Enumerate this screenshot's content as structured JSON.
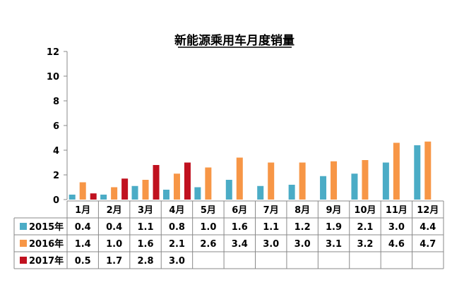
{
  "chart_data": {
    "type": "bar",
    "title": "新能源乘用车月度销量",
    "categories": [
      "1月",
      "2月",
      "3月",
      "4月",
      "5月",
      "6月",
      "7月",
      "8月",
      "9月",
      "10月",
      "11月",
      "12月"
    ],
    "ylim": [
      0,
      12
    ],
    "yticks": [
      "0",
      "2",
      "4",
      "6",
      "8",
      "10",
      "12"
    ],
    "grid": false,
    "legend": "data-table-left",
    "series": [
      {
        "name": "2015年",
        "color": "#4BACC6",
        "values": [
          0.4,
          0.4,
          1.1,
          0.8,
          1.0,
          1.6,
          1.1,
          1.2,
          1.9,
          2.1,
          3.0,
          4.4
        ],
        "labels": [
          "0.4",
          "0.4",
          "1.1",
          "0.8",
          "1.0",
          "1.6",
          "1.1",
          "1.2",
          "1.9",
          "2.1",
          "3.0",
          "4.4"
        ]
      },
      {
        "name": "2016年",
        "color": "#F79646",
        "values": [
          1.4,
          1.0,
          1.6,
          2.1,
          2.6,
          3.4,
          3.0,
          3.0,
          3.1,
          3.2,
          4.6,
          4.7
        ],
        "labels": [
          "1.4",
          "1.0",
          "1.6",
          "2.1",
          "2.6",
          "3.4",
          "3.0",
          "3.0",
          "3.1",
          "3.2",
          "4.6",
          "4.7"
        ]
      },
      {
        "name": "2017年",
        "color": "#C0111F",
        "values": [
          0.5,
          1.7,
          2.8,
          3.0,
          null,
          null,
          null,
          null,
          null,
          null,
          null,
          null
        ],
        "labels": [
          "0.5",
          "1.7",
          "2.8",
          "3.0",
          "",
          "",
          "",
          "",
          "",
          "",
          "",
          ""
        ]
      }
    ]
  }
}
